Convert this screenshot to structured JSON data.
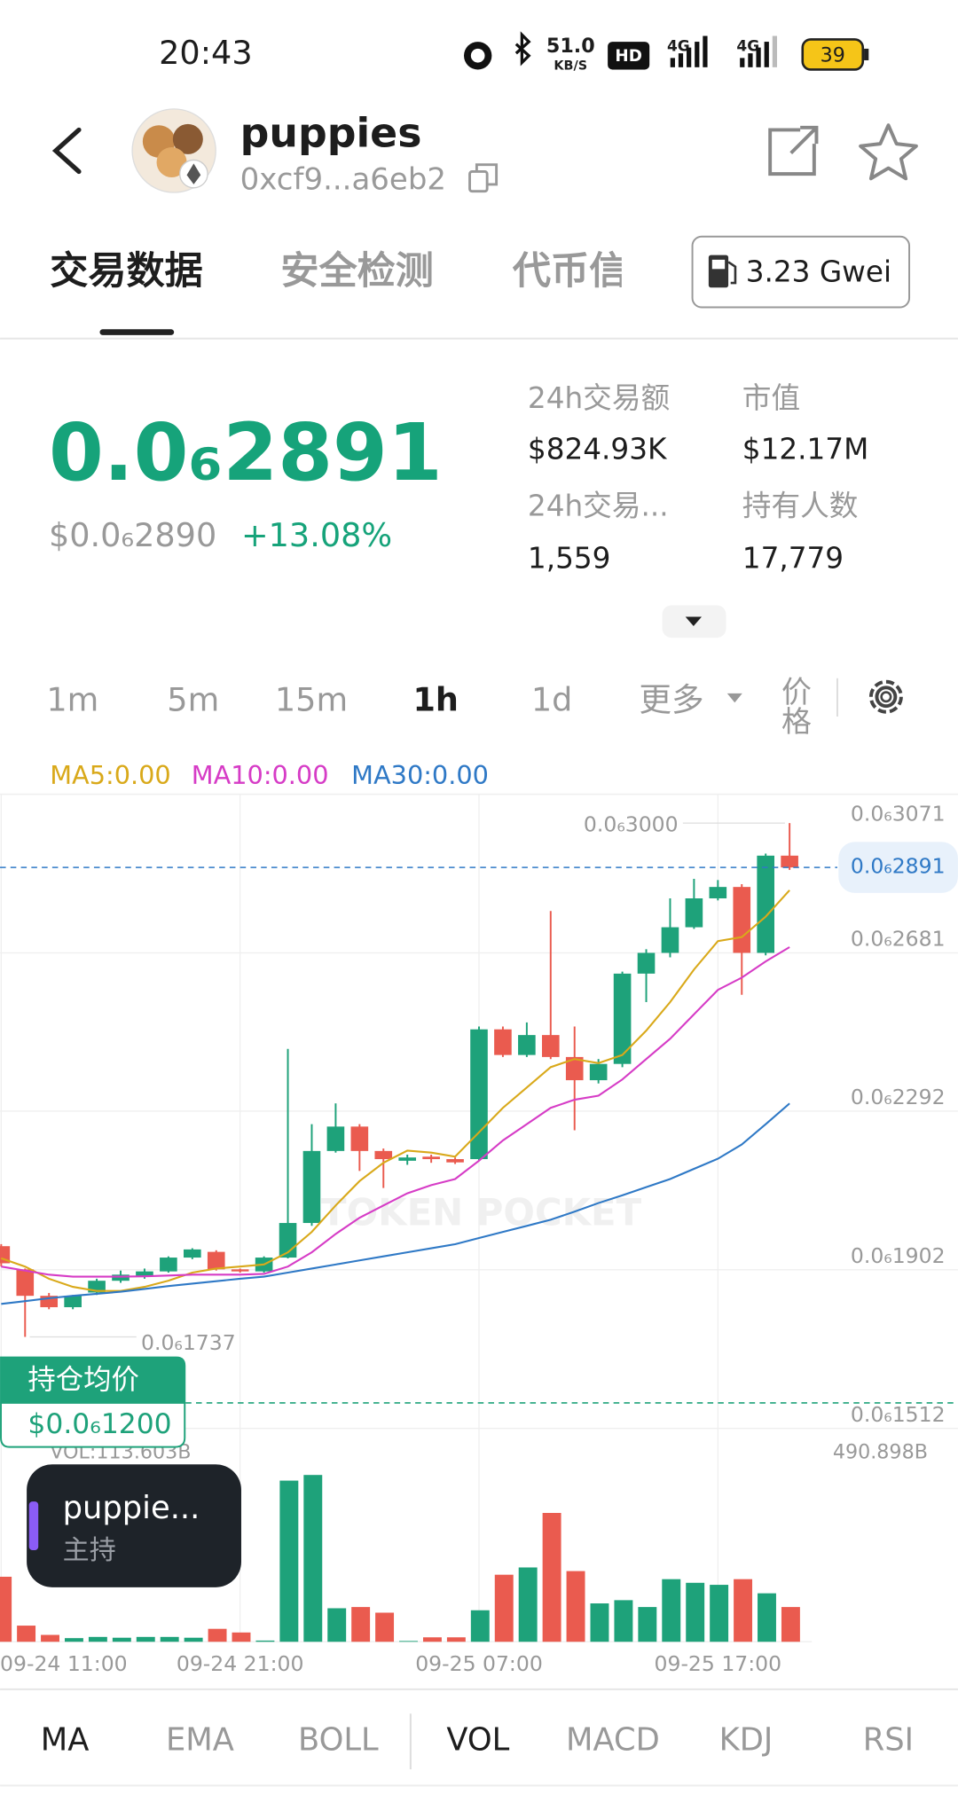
{
  "status_bar": {
    "time": "20:43",
    "net_speed": "51.0",
    "net_unit": "KB/S",
    "hd": "HD",
    "sig1": "4G",
    "sig2": "4G",
    "battery": "39"
  },
  "header": {
    "title": "puppies",
    "address": "0xcf9...a6eb2"
  },
  "tabs": [
    "交易数据",
    "安全检测",
    "代币信息"
  ],
  "gas": "3.23 Gwei",
  "price": {
    "main": "0.0₆2891",
    "usd": "$0.0₆2890",
    "change": "+13.08%"
  },
  "stats": [
    {
      "label": "24h交易额",
      "value": "$824.93K"
    },
    {
      "label": "市值",
      "value": "$12.17M"
    },
    {
      "label": "24h交易...",
      "value": "1,559"
    },
    {
      "label": "持有人数",
      "value": "17,779"
    }
  ],
  "timeframes": [
    "1m",
    "5m",
    "15m",
    "1h",
    "1d",
    "更多"
  ],
  "price_tab": "价格",
  "chart_data": {
    "type": "candlestick",
    "categories": [
      "09-24 11:00",
      null,
      null,
      null,
      null,
      null,
      null,
      null,
      null,
      null,
      "09-24 21:00",
      null,
      null,
      null,
      null,
      null,
      null,
      null,
      null,
      null,
      "09-25 07:00",
      null,
      null,
      null,
      null,
      null,
      null,
      null,
      null,
      null,
      "09-25 17:00",
      null,
      null,
      null
    ],
    "open": [
      1.96e-07,
      1.903e-07,
      1.838e-07,
      1.81e-07,
      1.846e-07,
      1.875e-07,
      1.885e-07,
      1.898e-07,
      1.932e-07,
      1.946e-07,
      1.903e-07,
      1.898e-07,
      1.932e-07,
      2.017e-07,
      2.194e-07,
      2.254e-07,
      2.194e-07,
      2.17e-07,
      2.18e-07,
      2.174e-07,
      2.174e-07,
      2.493e-07,
      2.43e-07,
      2.479e-07,
      2.425e-07,
      2.368e-07,
      2.408e-07,
      2.63e-07,
      2.681e-07,
      2.744e-07,
      2.815e-07,
      2.843e-07,
      2.681e-07,
      2.92e-07
    ],
    "high": [
      1.965e-07,
      1.905e-07,
      1.845e-07,
      1.84e-07,
      1.88e-07,
      1.9e-07,
      1.905e-07,
      1.935e-07,
      1.955e-07,
      1.95e-07,
      1.905e-07,
      1.935e-07,
      2.445e-07,
      2.26e-07,
      2.311e-07,
      2.26e-07,
      2.2e-07,
      2.185e-07,
      2.185e-07,
      2.178e-07,
      2.5e-07,
      2.5e-07,
      2.51e-07,
      2.784e-07,
      2.5e-07,
      2.42e-07,
      2.635e-07,
      2.69e-07,
      2.815e-07,
      2.863e-07,
      2.86e-07,
      2.85e-07,
      2.925e-07,
      3e-07
    ],
    "low": [
      1.91e-07,
      1.737e-07,
      1.805e-07,
      1.805e-07,
      1.84e-07,
      1.87e-07,
      1.88e-07,
      1.895e-07,
      1.928e-07,
      1.9e-07,
      1.895e-07,
      1.895e-07,
      1.93e-07,
      2.01e-07,
      2.19e-07,
      2.145e-07,
      2.103e-07,
      2.16e-07,
      2.165e-07,
      2.162e-07,
      2.17e-07,
      2.425e-07,
      2.425e-07,
      2.42e-07,
      2.245e-07,
      2.36e-07,
      2.4e-07,
      2.56e-07,
      2.67e-07,
      2.74e-07,
      2.81e-07,
      2.578e-07,
      2.675e-07,
      2.885e-07
    ],
    "close": [
      1.918e-07,
      1.838e-07,
      1.81e-07,
      1.838e-07,
      1.875e-07,
      1.89e-07,
      1.898e-07,
      1.932e-07,
      1.952e-07,
      1.903e-07,
      1.898e-07,
      1.932e-07,
      2.017e-07,
      2.194e-07,
      2.254e-07,
      2.194e-07,
      2.174e-07,
      2.178e-07,
      2.174e-07,
      2.166e-07,
      2.493e-07,
      2.43e-07,
      2.479e-07,
      2.425e-07,
      2.368e-07,
      2.408e-07,
      2.63e-07,
      2.681e-07,
      2.744e-07,
      2.815e-07,
      2.843e-07,
      2.681e-07,
      2.92e-07,
      2.891e-07
    ],
    "up_color": "#1ea27a",
    "down_color": "#ea5b4f",
    "series": [
      {
        "name": "MA5:0.00",
        "color": "#d9a91a",
        "values": [
          1.93e-07,
          1.91e-07,
          1.88e-07,
          1.86e-07,
          1.85e-07,
          1.85e-07,
          1.86e-07,
          1.875e-07,
          1.895e-07,
          1.905e-07,
          1.91e-07,
          1.915e-07,
          1.945e-07,
          1.995e-07,
          2.06e-07,
          2.12e-07,
          2.165e-07,
          2.195e-07,
          2.19e-07,
          2.18e-07,
          2.24e-07,
          2.3e-07,
          2.35e-07,
          2.4e-07,
          2.42e-07,
          2.41e-07,
          2.43e-07,
          2.49e-07,
          2.56e-07,
          2.64e-07,
          2.71e-07,
          2.72e-07,
          2.77e-07,
          2.835e-07
        ]
      },
      {
        "name": "MA10:0.00",
        "color": "#d63cc6",
        "values": [
          1.91e-07,
          1.9e-07,
          1.89e-07,
          1.885e-07,
          1.885e-07,
          1.885e-07,
          1.886e-07,
          1.888e-07,
          1.89e-07,
          1.89e-07,
          1.89e-07,
          1.892e-07,
          1.91e-07,
          1.945e-07,
          1.99e-07,
          2.03e-07,
          2.06e-07,
          2.09e-07,
          2.11e-07,
          2.125e-07,
          2.17e-07,
          2.22e-07,
          2.26e-07,
          2.3e-07,
          2.32e-07,
          2.33e-07,
          2.37e-07,
          2.42e-07,
          2.47e-07,
          2.53e-07,
          2.59e-07,
          2.62e-07,
          2.66e-07,
          2.695e-07
        ]
      },
      {
        "name": "MA30:0.00",
        "color": "#2f79c6",
        "values": [
          1.818e-07,
          1.825e-07,
          1.832e-07,
          1.838e-07,
          1.843e-07,
          1.848e-07,
          1.855e-07,
          1.862e-07,
          1.868e-07,
          1.874e-07,
          1.88e-07,
          1.885e-07,
          1.895e-07,
          1.905e-07,
          1.915e-07,
          1.925e-07,
          1.935e-07,
          1.945e-07,
          1.955e-07,
          1.965e-07,
          1.98e-07,
          1.995e-07,
          2.01e-07,
          2.025e-07,
          2.045e-07,
          2.066e-07,
          2.085e-07,
          2.105e-07,
          2.125e-07,
          2.15e-07,
          2.175e-07,
          2.21e-07,
          2.26e-07,
          2.311e-07
        ]
      }
    ],
    "ylim": [
      1.512e-07,
      3.071e-07
    ],
    "yticks": [
      {
        "value": 3.071e-07,
        "label": "0.0₆3071"
      },
      {
        "value": 2.681e-07,
        "label": "0.0₆2681"
      },
      {
        "value": 2.292e-07,
        "label": "0.0₆2292"
      },
      {
        "value": 1.902e-07,
        "label": "0.0₆1902"
      },
      {
        "value": 1.512e-07,
        "label": "0.0₆1512"
      }
    ],
    "grid": true,
    "last_price": {
      "value": 2.891e-07,
      "label": "0.0₆2891"
    },
    "high_label": "0.0₆3000",
    "low_label": "0.0₆1737",
    "volume": {
      "label": "VOL:113.603B",
      "values": [
        161,
        40,
        17,
        9,
        12,
        10,
        12,
        12,
        10,
        32,
        23,
        3,
        399,
        413,
        83,
        86,
        72,
        2,
        11,
        11,
        78,
        166,
        184,
        319,
        175,
        95,
        103,
        86,
        155,
        146,
        141,
        155,
        120,
        86
      ],
      "ylim": [
        0,
        490.898
      ],
      "yticks": [
        {
          "value": 490.898,
          "label": "490.898B"
        }
      ]
    }
  },
  "hold_badge": {
    "title": "持仓均价",
    "price": "$0.0₆1200"
  },
  "toast": {
    "title": "puppie...",
    "subtitle": "主持"
  },
  "watermark": "TOKEN POCKET",
  "indicators": [
    "MA",
    "EMA",
    "BOLL",
    "VOL",
    "MACD",
    "KDJ",
    "RSI"
  ]
}
